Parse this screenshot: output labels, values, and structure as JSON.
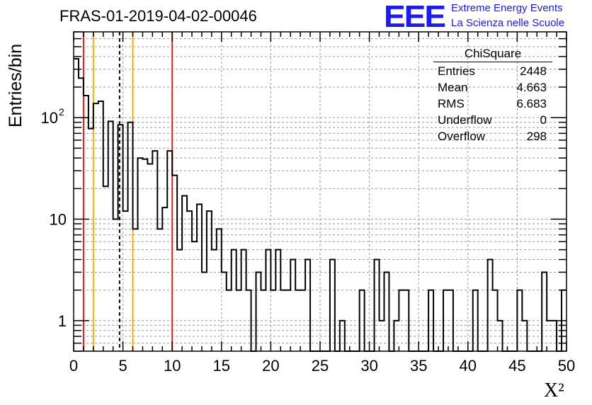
{
  "header": {
    "title": "FRAS-01-2019-04-02-00046",
    "logo_text": "EEE",
    "tagline1": "Extreme Energy Events",
    "tagline2": "La Scienza nelle Scuole"
  },
  "stats_box": {
    "title": "ChiSquare",
    "rows": [
      {
        "label": "Entries",
        "value": "2448"
      },
      {
        "label": "Mean",
        "value": "4.663"
      },
      {
        "label": "RMS",
        "value": "6.683"
      },
      {
        "label": "Underflow",
        "value": "0"
      },
      {
        "label": "Overflow",
        "value": "298"
      }
    ]
  },
  "chart_data": {
    "type": "bar",
    "title": "FRAS-01-2019-04-02-00046",
    "xlabel": "X²",
    "ylabel": "Entries/bin",
    "xlim": [
      0,
      50
    ],
    "ylim": [
      0.5,
      700
    ],
    "y_scale": "log",
    "grid": true,
    "bin_width": 0.5,
    "x_ticks": [
      "0",
      "5",
      "10",
      "15",
      "20",
      "25",
      "30",
      "35",
      "40",
      "45",
      "50"
    ],
    "y_ticks": [
      {
        "value": 1,
        "label": "1"
      },
      {
        "value": 10,
        "label": "10"
      },
      {
        "value": 100,
        "label": "10²"
      }
    ],
    "values": [
      380,
      245,
      165,
      78,
      138,
      145,
      21,
      92,
      10,
      85,
      12,
      90,
      8,
      40,
      39,
      35,
      47,
      8,
      13,
      47,
      27,
      5,
      17,
      12,
      6,
      14,
      3,
      12,
      5,
      8,
      3,
      2,
      5,
      2,
      5,
      2,
      0,
      3,
      2,
      5,
      2,
      5,
      2,
      2,
      4,
      2,
      2,
      4,
      0,
      0,
      0,
      0,
      4,
      0,
      1,
      0,
      0,
      0,
      2,
      0,
      0,
      4,
      1,
      3,
      0,
      1,
      2,
      2,
      0,
      0,
      0,
      0,
      2,
      0,
      0,
      2,
      2,
      0,
      0,
      0,
      0,
      2,
      0,
      0,
      4,
      2,
      1,
      0,
      0,
      0,
      2,
      1,
      0,
      0,
      0,
      3,
      1,
      1,
      0,
      2
    ],
    "reference_lines": [
      {
        "x": 1.0,
        "color": "#e0231c",
        "style": "solid"
      },
      {
        "x": 2.0,
        "color": "#f0b400",
        "style": "solid"
      },
      {
        "x": 4.66,
        "color": "#000000",
        "style": "dashed"
      },
      {
        "x": 6.0,
        "color": "#f0b400",
        "style": "solid"
      },
      {
        "x": 10.0,
        "color": "#e0231c",
        "style": "solid"
      }
    ]
  }
}
